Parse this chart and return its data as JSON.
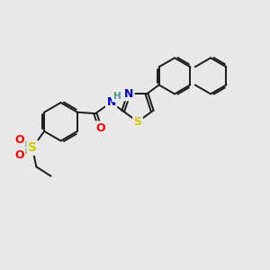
{
  "bg_color": "#e8e8e8",
  "bond_color": "#1a1a1a",
  "bond_width": 1.4,
  "atom_colors": {
    "N": "#0000cc",
    "O": "#ff0000",
    "S": "#cccc00",
    "H": "#4a9999",
    "C": "#1a1a1a"
  },
  "figsize": [
    3.0,
    3.0
  ],
  "dpi": 100
}
